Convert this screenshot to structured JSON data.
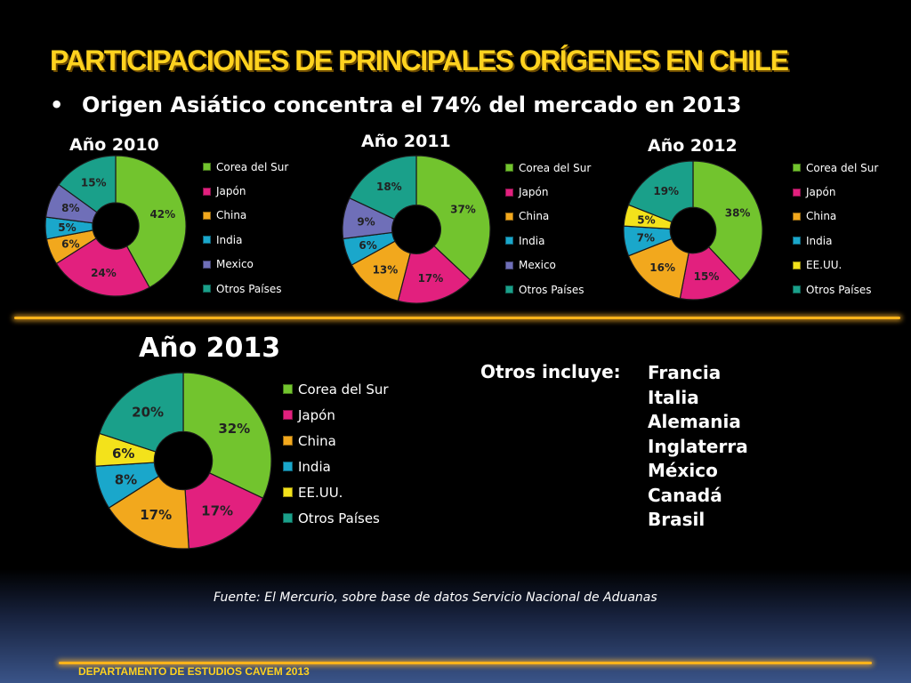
{
  "header": {
    "title": "PARTICIPACIONES DE PRINCIPALES ORÍGENES EN CHILE",
    "bullet_char": "•",
    "bullet": "Origen Asiático concentra el 74% del mercado en 2013"
  },
  "colors": {
    "Corea del Sur": "#72c42e",
    "Japón": "#e2207e",
    "China": "#f2a81d",
    "India": "#1aa7cb",
    "Mexico": "#6f6fb8",
    "EE.UU.": "#f3e21b",
    "Otros Países": "#1aa08a",
    "accent_title": "#ffd21f",
    "divider": "#ffb31a"
  },
  "chart_data": [
    {
      "type": "pie",
      "title": "Año 2010",
      "categories": [
        "Corea del Sur",
        "Japón",
        "China",
        "India",
        "Mexico",
        "Otros Países"
      ],
      "values": [
        42,
        24,
        6,
        5,
        8,
        15
      ],
      "labels": [
        "42%",
        "24%",
        "6%",
        "5%",
        "8%",
        "15%"
      ],
      "legend": "right"
    },
    {
      "type": "pie",
      "title": "Año 2011",
      "categories": [
        "Corea del Sur",
        "Japón",
        "China",
        "India",
        "Mexico",
        "Otros Países"
      ],
      "values": [
        37,
        17,
        13,
        6,
        9,
        18
      ],
      "labels": [
        "37%",
        "17%",
        "13%",
        "6%",
        "9%",
        "18%"
      ],
      "legend": "right"
    },
    {
      "type": "pie",
      "title": "Año 2012",
      "categories": [
        "Corea del Sur",
        "Japón",
        "China",
        "India",
        "EE.UU.",
        "Otros Países"
      ],
      "values": [
        38,
        15,
        16,
        7,
        5,
        19
      ],
      "labels": [
        "38%",
        "15%",
        "16%",
        "7%",
        "5%",
        "19%"
      ],
      "legend": "right"
    },
    {
      "type": "pie",
      "title": "Año 2013",
      "categories": [
        "Corea del Sur",
        "Japón",
        "China",
        "India",
        "EE.UU.",
        "Otros Países"
      ],
      "values": [
        32,
        17,
        17,
        8,
        6,
        20
      ],
      "labels": [
        "32%",
        "17%",
        "17%",
        "8%",
        "6%",
        "20%"
      ],
      "legend": "right"
    }
  ],
  "others": {
    "label": "Otros incluye:",
    "items": [
      "Francia",
      "Italia",
      "Alemania",
      "Inglaterra",
      "México",
      "Canadá",
      "Brasil"
    ]
  },
  "source": "Fuente: El Mercurio, sobre base de datos Servicio Nacional de Aduanas",
  "footer": "DEPARTAMENTO DE ESTUDIOS CAVEM 2013"
}
